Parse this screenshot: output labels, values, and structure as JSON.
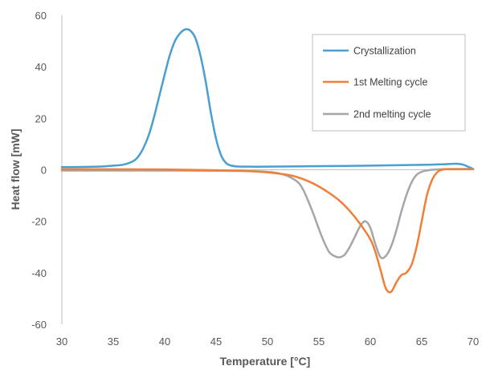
{
  "chart_data": {
    "type": "line",
    "xlabel": "Temperature [°C]",
    "ylabel": "Heat flow [mW]",
    "xlim": [
      30,
      70
    ],
    "ylim": [
      -60,
      60
    ],
    "x_ticks": [
      "30",
      "35",
      "40",
      "45",
      "50",
      "55",
      "60",
      "65",
      "70"
    ],
    "y_ticks": [
      "-60",
      "-40",
      "-20",
      "0",
      "20",
      "40",
      "60"
    ],
    "grid": false,
    "legend_position": "top-right",
    "series": [
      {
        "name": "Crystallization",
        "color": "#4a9ed0",
        "x": [
          30,
          32,
          34,
          35,
          36,
          37,
          37.5,
          38,
          38.5,
          39,
          39.5,
          40,
          40.5,
          41,
          41.5,
          42,
          42.5,
          43,
          43.5,
          44,
          44.5,
          45,
          45.5,
          46,
          46.5,
          47,
          48,
          50,
          55,
          60,
          65,
          67,
          68,
          68.5,
          69,
          69.5,
          70
        ],
        "y": [
          1,
          1.1,
          1.3,
          1.6,
          2.0,
          3.5,
          5.5,
          9,
          14,
          21,
          29,
          37,
          44.5,
          50,
          53,
          54.5,
          54,
          51,
          44,
          34,
          22,
          12,
          5.5,
          2.5,
          1.6,
          1.3,
          1.2,
          1.2,
          1.4,
          1.6,
          1.9,
          2.1,
          2.3,
          2.3,
          2.0,
          1.2,
          0.3
        ]
      },
      {
        "name": "1st Melting cycle",
        "color": "#f07f37",
        "x": [
          30,
          35,
          40,
          45,
          48,
          50,
          52,
          53,
          54,
          55,
          56,
          57,
          58,
          59,
          60,
          60.5,
          61,
          61.5,
          62,
          62.5,
          63,
          63.5,
          64,
          64.5,
          65,
          65.5,
          66,
          66.5,
          67,
          67.5,
          68,
          69,
          70
        ],
        "y": [
          0.2,
          0.2,
          0.1,
          -0.2,
          -0.5,
          -1.0,
          -2.0,
          -3.0,
          -4.5,
          -6.5,
          -9.0,
          -12.0,
          -16.0,
          -21.0,
          -27.0,
          -32.0,
          -39.0,
          -46.0,
          -47.5,
          -44.0,
          -41.0,
          -40.0,
          -37.0,
          -30.0,
          -20.0,
          -10.0,
          -4.0,
          -1.0,
          0.0,
          0.2,
          0.2,
          0.2,
          0.2
        ]
      },
      {
        "name": "2nd melting cycle",
        "color": "#a6a6a6",
        "x": [
          30,
          35,
          40,
          45,
          48,
          50,
          51,
          52,
          53,
          53.5,
          54,
          54.5,
          55,
          55.5,
          56,
          56.5,
          57,
          57.5,
          58,
          58.5,
          59,
          59.5,
          60,
          60.5,
          61,
          61.5,
          62,
          62.5,
          63,
          63.5,
          64,
          64.5,
          65,
          65.5,
          66,
          67,
          68,
          69,
          70
        ],
        "y": [
          -0.3,
          -0.3,
          -0.3,
          -0.4,
          -0.5,
          -0.8,
          -1.3,
          -2.5,
          -5.0,
          -8.0,
          -12.5,
          -17.5,
          -23.0,
          -28.0,
          -32.0,
          -33.5,
          -34.0,
          -33.0,
          -30.0,
          -26.0,
          -22.0,
          -20.0,
          -22.5,
          -29.0,
          -34.0,
          -33.5,
          -30.0,
          -24.0,
          -16.5,
          -10.0,
          -5.0,
          -2.0,
          -0.8,
          -0.3,
          0.0,
          0.2,
          0.3,
          0.3,
          0.3
        ]
      }
    ]
  }
}
